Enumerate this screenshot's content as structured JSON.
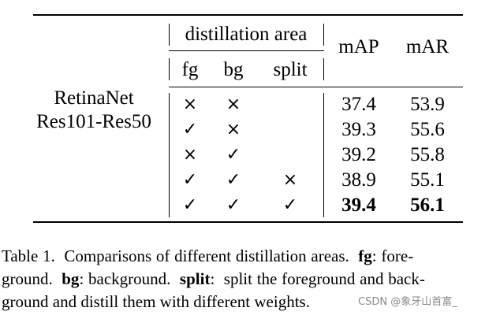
{
  "table": {
    "model_name": "RetinaNet",
    "model_pair": "Res101-Res50",
    "group_header": "distillation area",
    "sub_headers": [
      "fg",
      "bg",
      "split"
    ],
    "metric_headers": [
      "mAP",
      "mAR"
    ],
    "rows": [
      {
        "fg": "×",
        "bg": "×",
        "split": "",
        "map": "37.4",
        "mar": "53.9",
        "bold": false
      },
      {
        "fg": "✓",
        "bg": "×",
        "split": "",
        "map": "39.3",
        "mar": "55.6",
        "bold": false
      },
      {
        "fg": "×",
        "bg": "✓",
        "split": "",
        "map": "39.2",
        "mar": "55.8",
        "bold": false
      },
      {
        "fg": "✓",
        "bg": "✓",
        "split": "×",
        "map": "38.9",
        "mar": "55.1",
        "bold": false
      },
      {
        "fg": "✓",
        "bg": "✓",
        "split": "✓",
        "map": "39.4",
        "mar": "56.1",
        "bold": true
      }
    ]
  },
  "caption": {
    "line1_a": "Table 1.  Comparisons of different distillation areas.  ",
    "line1_k": "fg",
    "line1_b": ": fore-",
    "line2_a": "ground.  ",
    "line2_k1": "bg",
    "line2_b": ": background.  ",
    "line2_k2": "split",
    "line2_c": ":  split the foreground and back-",
    "line3": "ground and distill them with different weights."
  },
  "watermark": "CSDN @象牙山首富_"
}
